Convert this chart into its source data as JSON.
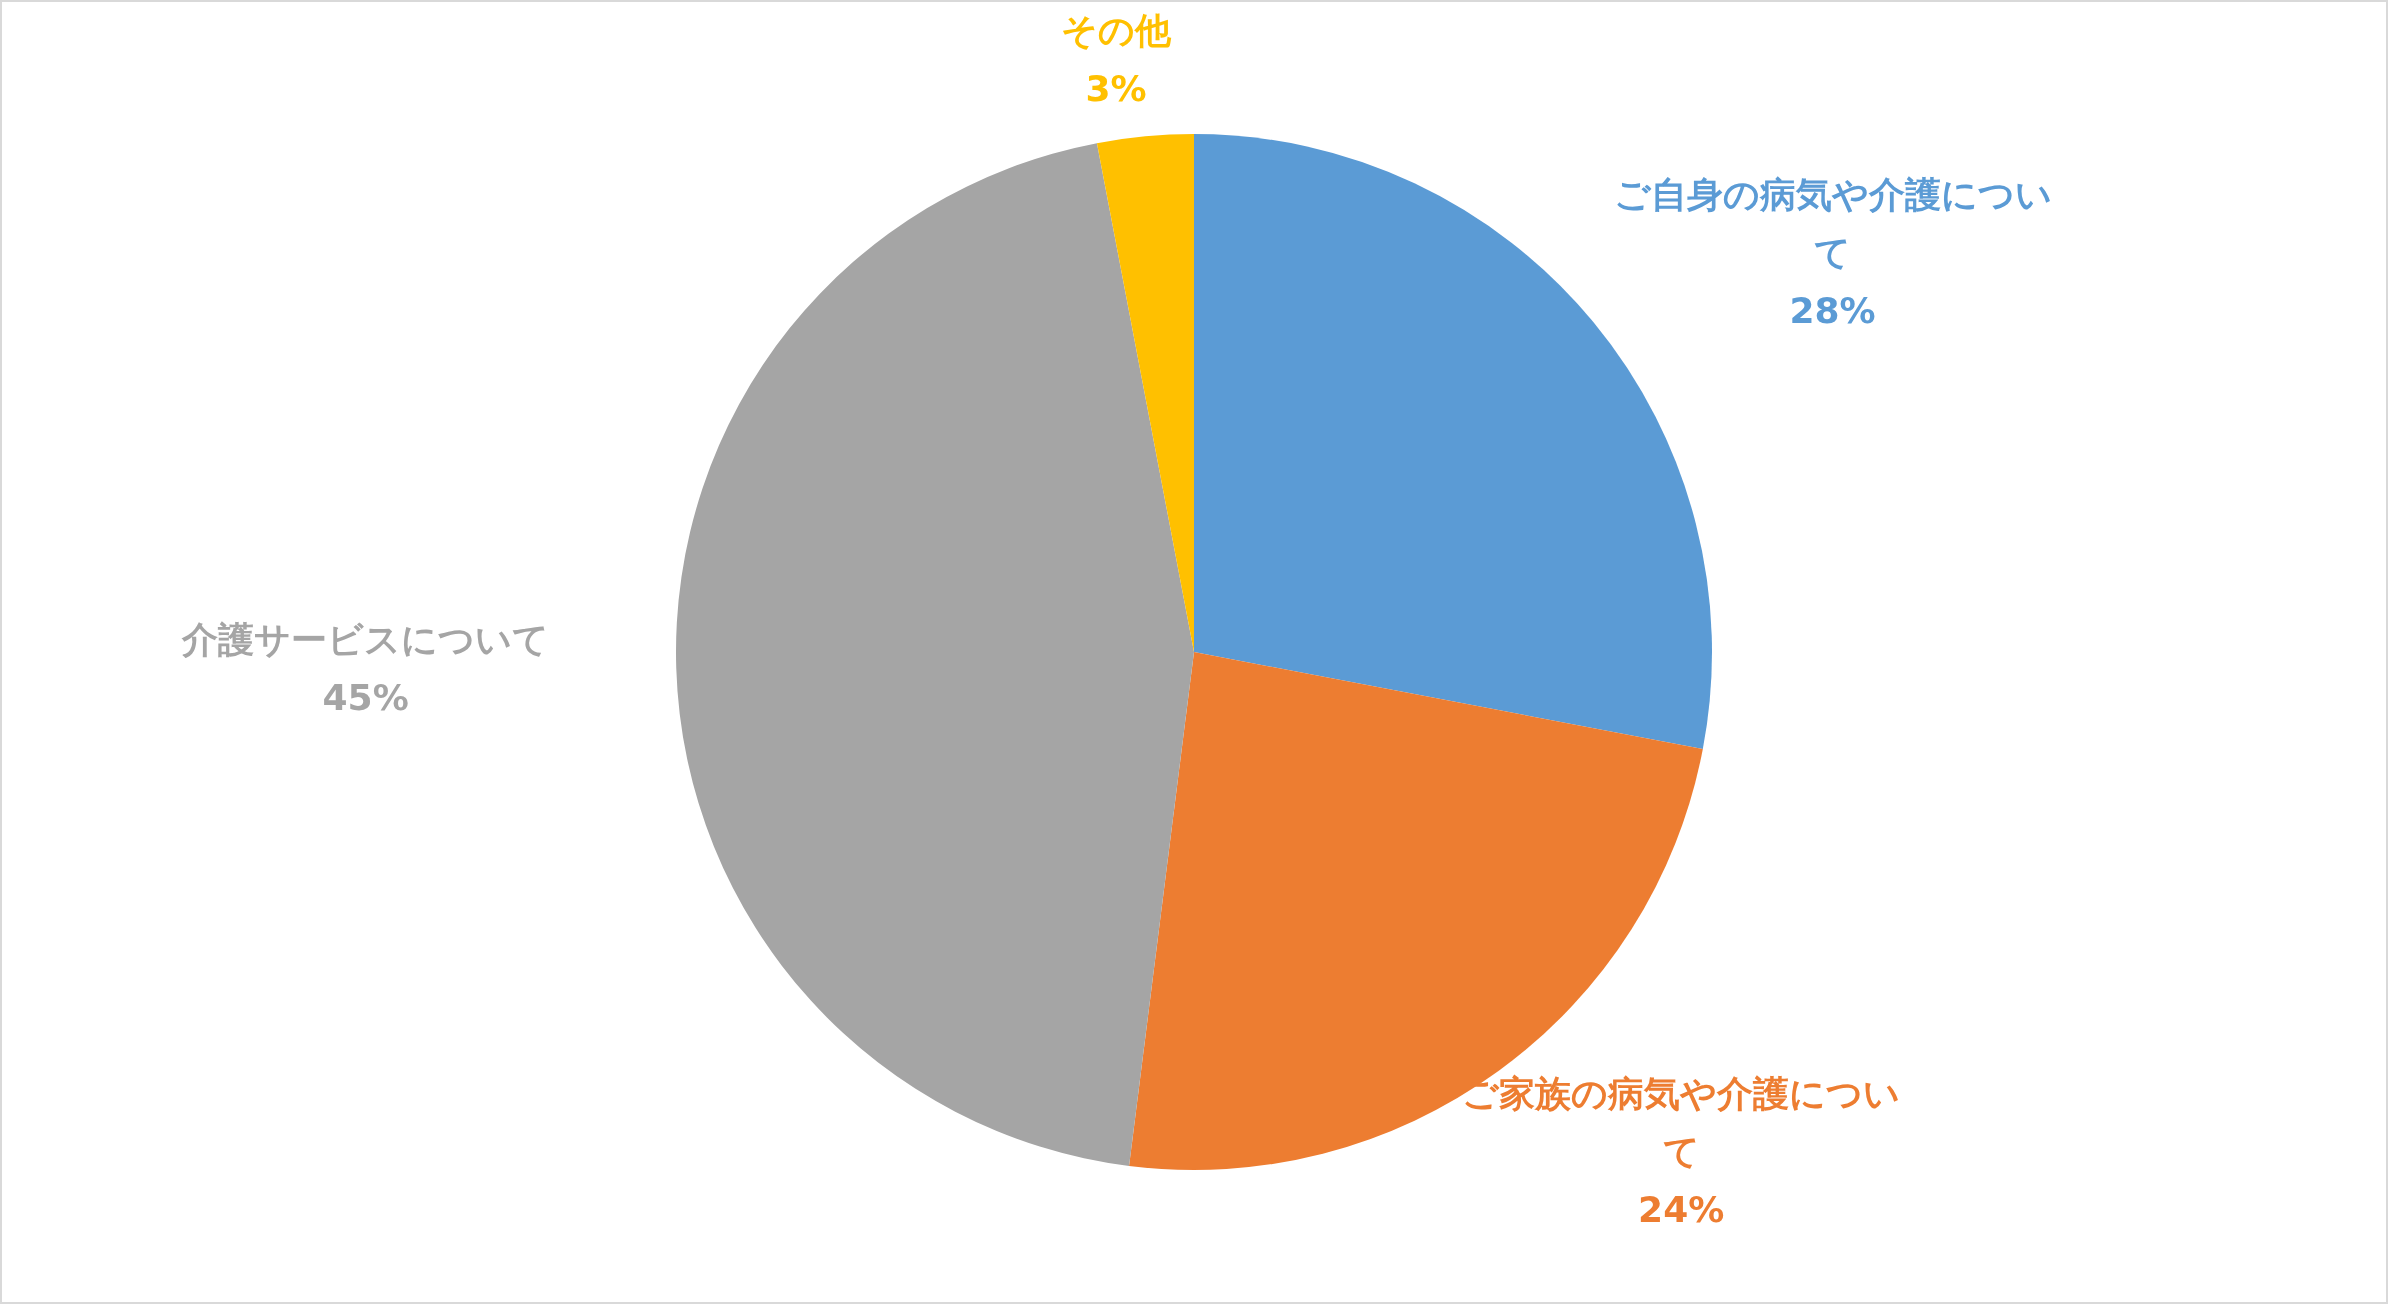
{
  "chart_data": {
    "type": "pie",
    "categories": [
      "ご自身の病気や介護について",
      "ご家族の病気や介護について",
      "介護サービスについて",
      "その他"
    ],
    "values": [
      28,
      24,
      45,
      3
    ],
    "colors": [
      "#5b9bd5",
      "#ed7d31",
      "#a5a5a5",
      "#ffc000"
    ],
    "value_labels": [
      "28%",
      "24%",
      "45%",
      "3%"
    ],
    "legend": false
  }
}
